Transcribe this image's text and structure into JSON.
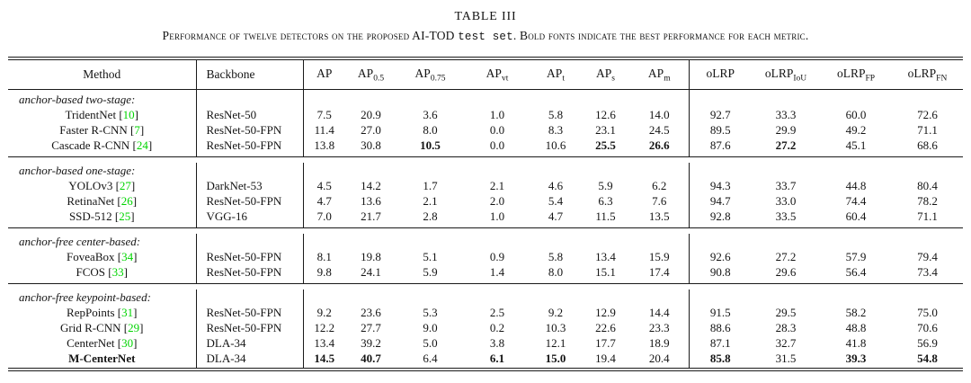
{
  "title": "TABLE III",
  "caption": {
    "part1": "Performance of twelve detectors on the proposed AI-TOD",
    "mono": "test set",
    "part2": ". Bold fonts indicate the best performance for each metric."
  },
  "colors": {
    "citation_green": "#00d400"
  },
  "table": {
    "headers": [
      {
        "base": "Method",
        "sub": ""
      },
      {
        "base": "Backbone",
        "sub": ""
      },
      {
        "base": "AP",
        "sub": ""
      },
      {
        "base": "AP",
        "sub": "0.5"
      },
      {
        "base": "AP",
        "sub": "0.75"
      },
      {
        "base": "AP",
        "sub": "vt"
      },
      {
        "base": "AP",
        "sub": "t"
      },
      {
        "base": "AP",
        "sub": "s"
      },
      {
        "base": "AP",
        "sub": "m"
      },
      {
        "base": "oLRP",
        "sub": ""
      },
      {
        "base": "oLRP",
        "sub": "IoU"
      },
      {
        "base": "oLRP",
        "sub": "FP"
      },
      {
        "base": "oLRP",
        "sub": "FN"
      }
    ],
    "groups": [
      {
        "label": "anchor-based two-stage:",
        "rows": [
          {
            "method": "TridentNet",
            "cite": "10",
            "backbone": "ResNet-50",
            "values": [
              "7.5",
              "20.9",
              "3.6",
              "1.0",
              "5.8",
              "12.6",
              "14.0",
              "92.7",
              "33.3",
              "60.0",
              "72.6"
            ],
            "bold_values": [],
            "bold_method": false
          },
          {
            "method": "Faster R-CNN",
            "cite": "7",
            "backbone": "ResNet-50-FPN",
            "values": [
              "11.4",
              "27.0",
              "8.0",
              "0.0",
              "8.3",
              "23.1",
              "24.5",
              "89.5",
              "29.9",
              "49.2",
              "71.1"
            ],
            "bold_values": [],
            "bold_method": false
          },
          {
            "method": "Cascade R-CNN",
            "cite": "24",
            "backbone": "ResNet-50-FPN",
            "values": [
              "13.8",
              "30.8",
              "10.5",
              "0.0",
              "10.6",
              "25.5",
              "26.6",
              "87.6",
              "27.2",
              "45.1",
              "68.6"
            ],
            "bold_values": [
              2,
              5,
              6,
              8
            ],
            "bold_method": false
          }
        ]
      },
      {
        "label": "anchor-based one-stage:",
        "rows": [
          {
            "method": "YOLOv3",
            "cite": "27",
            "backbone": "DarkNet-53",
            "values": [
              "4.5",
              "14.2",
              "1.7",
              "2.1",
              "4.6",
              "5.9",
              "6.2",
              "94.3",
              "33.7",
              "44.8",
              "80.4"
            ],
            "bold_values": [],
            "bold_method": false
          },
          {
            "method": "RetinaNet",
            "cite": "26",
            "backbone": "ResNet-50-FPN",
            "values": [
              "4.7",
              "13.6",
              "2.1",
              "2.0",
              "5.4",
              "6.3",
              "7.6",
              "94.7",
              "33.0",
              "74.4",
              "78.2"
            ],
            "bold_values": [],
            "bold_method": false
          },
          {
            "method": "SSD-512",
            "cite": "25",
            "backbone": "VGG-16",
            "values": [
              "7.0",
              "21.7",
              "2.8",
              "1.0",
              "4.7",
              "11.5",
              "13.5",
              "92.8",
              "33.5",
              "60.4",
              "71.1"
            ],
            "bold_values": [],
            "bold_method": false
          }
        ]
      },
      {
        "label": "anchor-free center-based:",
        "rows": [
          {
            "method": "FoveaBox",
            "cite": "34",
            "backbone": "ResNet-50-FPN",
            "values": [
              "8.1",
              "19.8",
              "5.1",
              "0.9",
              "5.8",
              "13.4",
              "15.9",
              "92.6",
              "27.2",
              "57.9",
              "79.4"
            ],
            "bold_values": [],
            "bold_method": false
          },
          {
            "method": "FCOS",
            "cite": "33",
            "backbone": "ResNet-50-FPN",
            "values": [
              "9.8",
              "24.1",
              "5.9",
              "1.4",
              "8.0",
              "15.1",
              "17.4",
              "90.8",
              "29.6",
              "56.4",
              "73.4"
            ],
            "bold_values": [],
            "bold_method": false
          }
        ]
      },
      {
        "label": "anchor-free keypoint-based:",
        "rows": [
          {
            "method": "RepPoints",
            "cite": "31",
            "backbone": "ResNet-50-FPN",
            "values": [
              "9.2",
              "23.6",
              "5.3",
              "2.5",
              "9.2",
              "12.9",
              "14.4",
              "91.5",
              "29.5",
              "58.2",
              "75.0"
            ],
            "bold_values": [],
            "bold_method": false
          },
          {
            "method": "Grid R-CNN",
            "cite": "29",
            "backbone": "ResNet-50-FPN",
            "values": [
              "12.2",
              "27.7",
              "9.0",
              "0.2",
              "10.3",
              "22.6",
              "23.3",
              "88.6",
              "28.3",
              "48.8",
              "70.6"
            ],
            "bold_values": [],
            "bold_method": false
          },
          {
            "method": "CenterNet",
            "cite": "30",
            "backbone": "DLA-34",
            "values": [
              "13.4",
              "39.2",
              "5.0",
              "3.8",
              "12.1",
              "17.7",
              "18.9",
              "87.1",
              "32.7",
              "41.8",
              "56.9"
            ],
            "bold_values": [],
            "bold_method": false
          },
          {
            "method": "M-CenterNet",
            "cite": "",
            "backbone": "DLA-34",
            "values": [
              "14.5",
              "40.7",
              "6.4",
              "6.1",
              "15.0",
              "19.4",
              "20.4",
              "85.8",
              "31.5",
              "39.3",
              "54.8"
            ],
            "bold_values": [
              0,
              1,
              3,
              4,
              7,
              9,
              10
            ],
            "bold_method": true
          }
        ]
      }
    ]
  }
}
